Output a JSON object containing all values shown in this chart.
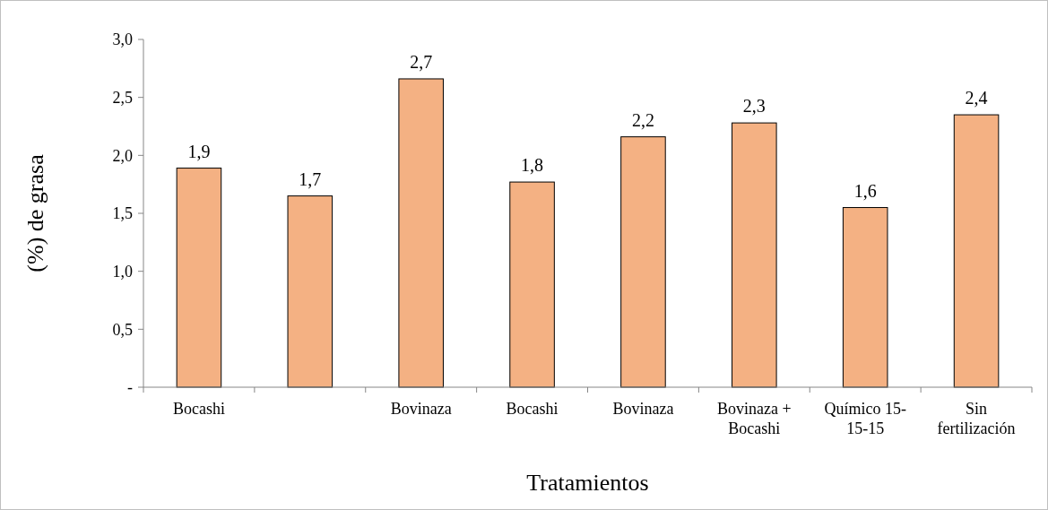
{
  "chart_data": {
    "type": "bar",
    "xlabel": "Tratamientos",
    "ylabel": "(%) de grasa",
    "categories": [
      "Bocashi",
      null,
      "Bovinaza",
      "Bocashi",
      "Bovinaza",
      "Bovinaza + Bocashi",
      "Químico 15-15-15",
      "Sin fertilización"
    ],
    "values": [
      1.89,
      1.65,
      2.66,
      1.77,
      2.16,
      2.28,
      1.55,
      2.35
    ],
    "value_labels": [
      "1,9",
      "1,7",
      "2,7",
      "1,8",
      "2,2",
      "2,3",
      "1,6",
      "2,4"
    ],
    "color": "#f4b183",
    "ylim": [
      0,
      3
    ],
    "yticks": [
      {
        "value": 0,
        "label": "-"
      },
      {
        "value": 0.5,
        "label": "0,5"
      },
      {
        "value": 1,
        "label": "1,0"
      },
      {
        "value": 1.5,
        "label": "1,5"
      },
      {
        "value": 2,
        "label": "2,0"
      },
      {
        "value": 2.5,
        "label": "2,5"
      },
      {
        "value": 3,
        "label": "3,0"
      }
    ],
    "grid": false
  }
}
